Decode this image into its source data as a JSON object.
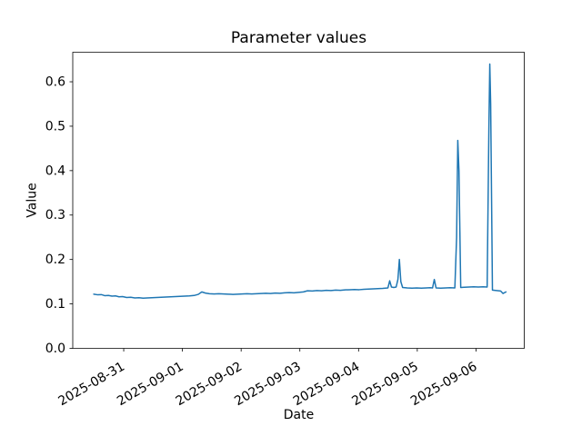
{
  "figure": {
    "background": "#ffffff",
    "axis_color": "#000000"
  },
  "chart_data": {
    "type": "line",
    "title": "Parameter values",
    "xlabel": "Date",
    "ylabel": "Value",
    "line_color": "#1f77b4",
    "grid": false,
    "legend": "none",
    "x_unit": "days since 2025-08-30 00:00",
    "xlim_days": [
      0.132,
      7.822
    ],
    "ylim": [
      0,
      0.6665
    ],
    "x_ticks_days": [
      1,
      2,
      3,
      4,
      5,
      6,
      7
    ],
    "x_tick_labels": [
      "2025-08-31",
      "2025-09-01",
      "2025-09-02",
      "2025-09-03",
      "2025-09-04",
      "2025-09-05",
      "2025-09-06"
    ],
    "x_tick_label_rotation_deg": 30,
    "y_ticks": [
      0.0,
      0.1,
      0.2,
      0.3,
      0.4,
      0.5,
      0.6
    ],
    "y_tick_labels": [
      "0.0",
      "0.1",
      "0.2",
      "0.3",
      "0.4",
      "0.5",
      "0.6"
    ],
    "series": [
      {
        "name": "parameter-values",
        "points": [
          [
            0.49,
            0.122
          ],
          [
            0.56,
            0.1205
          ],
          [
            0.62,
            0.121
          ],
          [
            0.68,
            0.1185
          ],
          [
            0.74,
            0.119
          ],
          [
            0.8,
            0.1175
          ],
          [
            0.86,
            0.118
          ],
          [
            0.92,
            0.116
          ],
          [
            0.98,
            0.1165
          ],
          [
            1.05,
            0.1145
          ],
          [
            1.12,
            0.115
          ],
          [
            1.19,
            0.1135
          ],
          [
            1.26,
            0.114
          ],
          [
            1.33,
            0.113
          ],
          [
            1.4,
            0.1135
          ],
          [
            1.48,
            0.114
          ],
          [
            1.56,
            0.1145
          ],
          [
            1.64,
            0.115
          ],
          [
            1.72,
            0.1155
          ],
          [
            1.8,
            0.116
          ],
          [
            1.88,
            0.1165
          ],
          [
            1.96,
            0.117
          ],
          [
            2.04,
            0.1175
          ],
          [
            2.12,
            0.118
          ],
          [
            2.2,
            0.119
          ],
          [
            2.27,
            0.1215
          ],
          [
            2.33,
            0.127
          ],
          [
            2.39,
            0.1245
          ],
          [
            2.46,
            0.123
          ],
          [
            2.54,
            0.1225
          ],
          [
            2.62,
            0.123
          ],
          [
            2.7,
            0.1225
          ],
          [
            2.78,
            0.122
          ],
          [
            2.86,
            0.1215
          ],
          [
            2.94,
            0.122
          ],
          [
            3.02,
            0.1225
          ],
          [
            3.1,
            0.123
          ],
          [
            3.18,
            0.1225
          ],
          [
            3.26,
            0.123
          ],
          [
            3.34,
            0.1235
          ],
          [
            3.42,
            0.124
          ],
          [
            3.5,
            0.1235
          ],
          [
            3.58,
            0.1245
          ],
          [
            3.66,
            0.124
          ],
          [
            3.74,
            0.125
          ],
          [
            3.82,
            0.1255
          ],
          [
            3.9,
            0.125
          ],
          [
            3.98,
            0.126
          ],
          [
            4.06,
            0.127
          ],
          [
            4.13,
            0.1295
          ],
          [
            4.21,
            0.129
          ],
          [
            4.29,
            0.13
          ],
          [
            4.37,
            0.1295
          ],
          [
            4.45,
            0.1305
          ],
          [
            4.53,
            0.13
          ],
          [
            4.61,
            0.131
          ],
          [
            4.69,
            0.1305
          ],
          [
            4.77,
            0.1315
          ],
          [
            4.85,
            0.132
          ],
          [
            4.93,
            0.1325
          ],
          [
            5.01,
            0.132
          ],
          [
            5.09,
            0.133
          ],
          [
            5.17,
            0.1335
          ],
          [
            5.25,
            0.134
          ],
          [
            5.33,
            0.1345
          ],
          [
            5.41,
            0.135
          ],
          [
            5.5,
            0.136
          ],
          [
            5.53,
            0.152
          ],
          [
            5.56,
            0.138
          ],
          [
            5.6,
            0.137
          ],
          [
            5.64,
            0.138
          ],
          [
            5.67,
            0.155
          ],
          [
            5.695,
            0.2
          ],
          [
            5.72,
            0.15
          ],
          [
            5.75,
            0.137
          ],
          [
            5.83,
            0.136
          ],
          [
            5.91,
            0.1355
          ],
          [
            5.99,
            0.136
          ],
          [
            6.07,
            0.1355
          ],
          [
            6.15,
            0.136
          ],
          [
            6.22,
            0.1365
          ],
          [
            6.26,
            0.136
          ],
          [
            6.29,
            0.155
          ],
          [
            6.32,
            0.136
          ],
          [
            6.4,
            0.1355
          ],
          [
            6.48,
            0.136
          ],
          [
            6.56,
            0.1365
          ],
          [
            6.64,
            0.136
          ],
          [
            6.67,
            0.25
          ],
          [
            6.69,
            0.468
          ],
          [
            6.71,
            0.4
          ],
          [
            6.74,
            0.137
          ],
          [
            6.8,
            0.1375
          ],
          [
            6.88,
            0.138
          ],
          [
            6.96,
            0.1385
          ],
          [
            7.04,
            0.138
          ],
          [
            7.12,
            0.1385
          ],
          [
            7.19,
            0.138
          ],
          [
            7.22,
            0.5
          ],
          [
            7.235,
            0.64
          ],
          [
            7.25,
            0.55
          ],
          [
            7.28,
            0.131
          ],
          [
            7.35,
            0.13
          ],
          [
            7.42,
            0.129
          ],
          [
            7.46,
            0.1235
          ],
          [
            7.51,
            0.127
          ]
        ]
      }
    ]
  }
}
